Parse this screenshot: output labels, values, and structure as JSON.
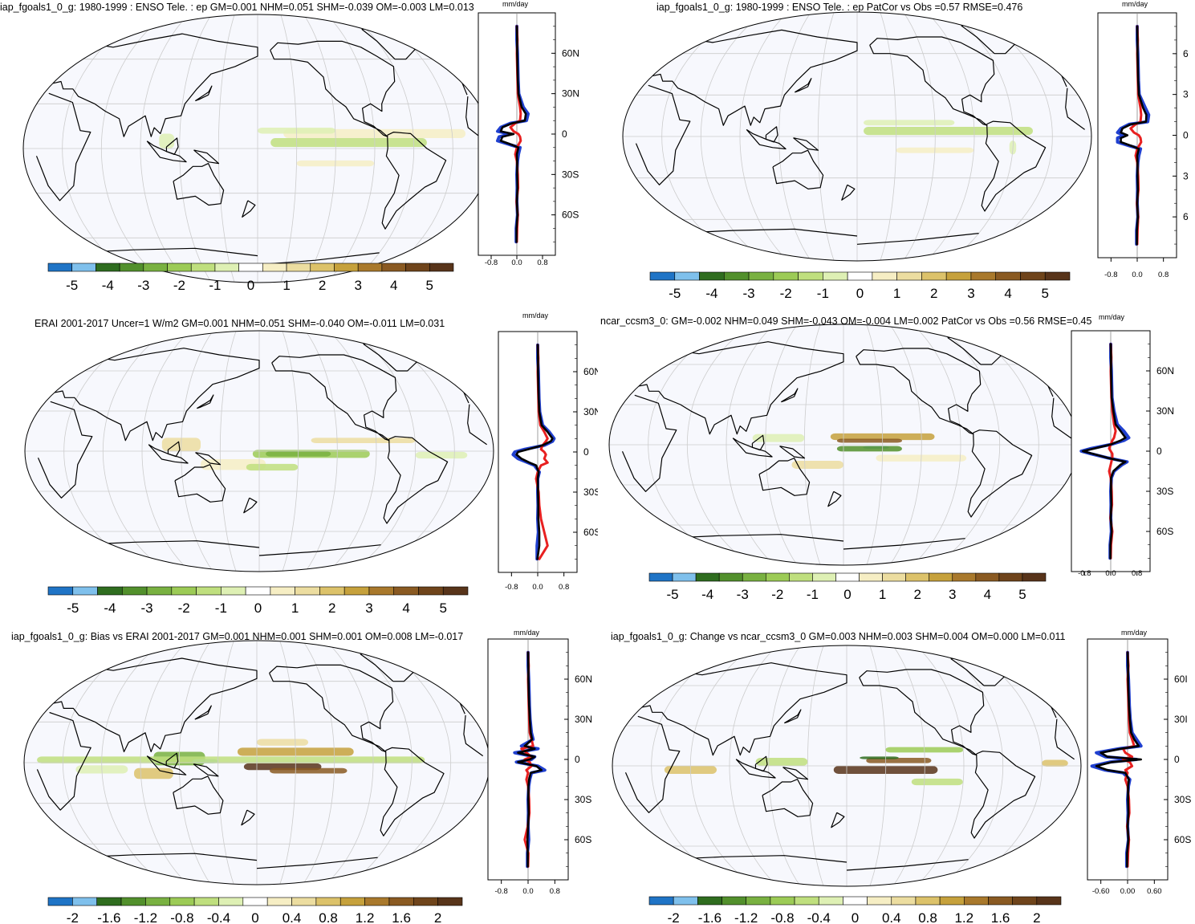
{
  "colors": {
    "map_background": "#f7f8fd",
    "obs_line": "#2040d0",
    "model_line": "#e82020",
    "mean_line": "#000000",
    "colorbar": [
      "#1f74c6",
      "#7fc0ec",
      "#2f6d1f",
      "#52902c",
      "#79b141",
      "#9ccb56",
      "#bfdf7e",
      "#def0b4",
      "#ffffff",
      "#f6eec4",
      "#ecdda0",
      "#dcc26a",
      "#c6a13c",
      "#a9792c",
      "#8a5a22",
      "#6f441b",
      "#58341a"
    ]
  },
  "chart_data": [
    {
      "id": "p1",
      "type": "heatmap",
      "title": "iap_fgoals1_0_g: 1980-1999 : ENSO Tele. : ep GM=0.001 NHM=0.051 SHM=-0.039 OM=-0.003 LM=0.013",
      "colorbar_labels": [
        "-5",
        "-4",
        "-3",
        "-2",
        "-1",
        "0",
        "1",
        "2",
        "3",
        "4",
        "5"
      ],
      "profile": {
        "unit": "mm/day",
        "x_ticks": [
          "-0.8",
          "0.0",
          "0.8"
        ],
        "y_ticks": [
          "60N",
          "30N",
          "0",
          "30S",
          "60S"
        ],
        "y": [
          80,
          70,
          60,
          50,
          40,
          30,
          20,
          15,
          10,
          8,
          5,
          2,
          0,
          -2,
          -5,
          -8,
          -10,
          -15,
          -20,
          -30,
          -40,
          -50,
          -60,
          -70,
          -80
        ],
        "series": [
          {
            "color_key": "obs_line",
            "values": [
              0,
              0,
              0.02,
              0.03,
              0.04,
              0.06,
              0.2,
              0.35,
              0.3,
              -0.2,
              -0.5,
              -0.6,
              -0.2,
              -0.55,
              -0.6,
              -0.2,
              0.1,
              0.05,
              0.02,
              0,
              0.01,
              0,
              0.02,
              -0.02,
              -0.02
            ]
          },
          {
            "color_key": "model_line",
            "values": [
              0,
              0.02,
              0,
              0.01,
              0.02,
              0.03,
              0.1,
              0.12,
              0.1,
              -0.05,
              -0.2,
              -0.1,
              0.05,
              0.1,
              0.12,
              0.05,
              0.0,
              -0.05,
              0,
              0.03,
              0.04,
              -0.01,
              0.03,
              0.01,
              0
            ]
          },
          {
            "color_key": "mean_line",
            "values": [
              0,
              0.01,
              0.01,
              0.02,
              0.03,
              0.05,
              0.15,
              0.28,
              0.25,
              -0.15,
              -0.45,
              -0.5,
              -0.1,
              -0.45,
              -0.5,
              -0.15,
              0.05,
              0.0,
              0.01,
              0.01,
              0.02,
              0,
              0.02,
              -0.01,
              -0.01
            ]
          }
        ],
        "xlim": [
          -1.2,
          1.2
        ],
        "ylim": [
          -90,
          90
        ]
      }
    },
    {
      "id": "p2",
      "type": "heatmap",
      "title": "iap_fgoals1_0_g: 1980-1999 : ENSO Tele. : ep PatCor vs Obs =0.57 RMSE=0.476",
      "colorbar_labels": [
        "-5",
        "-4",
        "-3",
        "-2",
        "-1",
        "0",
        "1",
        "2",
        "3",
        "4",
        "5"
      ],
      "profile": {
        "unit": "mm/day",
        "x_ticks": [
          "-0.8",
          "0.0",
          "0.8"
        ],
        "y_ticks": [
          "6",
          "3",
          "0",
          "3",
          "6"
        ],
        "y": [
          80,
          70,
          60,
          50,
          40,
          30,
          20,
          15,
          10,
          8,
          5,
          2,
          0,
          -2,
          -5,
          -8,
          -10,
          -15,
          -20,
          -30,
          -40,
          -50,
          -60,
          -70,
          -80
        ],
        "series": [
          {
            "color_key": "obs_line",
            "values": [
              0,
              0,
              0.02,
              0.03,
              0.04,
              0.06,
              0.25,
              0.35,
              0.32,
              -0.25,
              -0.5,
              -0.6,
              -0.4,
              -0.6,
              -0.6,
              -0.2,
              0.1,
              0.05,
              0.02,
              0,
              0.01,
              0,
              0.02,
              -0.02,
              -0.02
            ]
          },
          {
            "color_key": "model_line",
            "values": [
              0,
              0.02,
              0,
              0.01,
              0.02,
              0.03,
              0.1,
              0.12,
              0.1,
              -0.05,
              -0.2,
              -0.1,
              0.05,
              0.1,
              0.12,
              0.05,
              0.0,
              -0.05,
              0,
              0.03,
              0.04,
              -0.01,
              0.03,
              0.01,
              0
            ]
          },
          {
            "color_key": "mean_line",
            "values": [
              0,
              0.01,
              0.01,
              0.02,
              0.03,
              0.05,
              0.18,
              0.28,
              0.27,
              -0.2,
              -0.45,
              -0.5,
              -0.3,
              -0.5,
              -0.5,
              -0.15,
              0.05,
              0.0,
              0.01,
              0.01,
              0.02,
              0,
              0.02,
              -0.01,
              -0.01
            ]
          }
        ],
        "xlim": [
          -1.2,
          1.2
        ],
        "ylim": [
          -90,
          90
        ]
      }
    },
    {
      "id": "p3",
      "type": "heatmap",
      "title": "ERAI 2001-2017 Uncer=1 W/m2 GM=0.001 NHM=0.051 SHM=-0.040 OM=-0.011 LM=0.031",
      "colorbar_labels": [
        "-5",
        "-4",
        "-3",
        "-2",
        "-1",
        "0",
        "1",
        "2",
        "3",
        "4",
        "5"
      ],
      "profile": {
        "unit": "mm/day",
        "x_ticks": [
          "-0.8",
          "0.0",
          "0.8"
        ],
        "y_ticks": [
          "60N",
          "30N",
          "0",
          "30S",
          "60S"
        ],
        "y": [
          80,
          70,
          60,
          50,
          40,
          30,
          20,
          15,
          10,
          8,
          5,
          2,
          0,
          -2,
          -5,
          -8,
          -10,
          -15,
          -20,
          -30,
          -40,
          -50,
          -60,
          -70,
          -80
        ],
        "series": [
          {
            "color_key": "obs_line",
            "values": [
              0,
              0,
              0.02,
              0.03,
              0.04,
              0.06,
              0.15,
              0.35,
              0.5,
              0.45,
              0.2,
              -0.4,
              -0.7,
              -0.75,
              -0.6,
              -0.3,
              -0.1,
              0.05,
              0.0,
              0,
              0.01,
              0,
              0.02,
              -0.02,
              -0.02
            ]
          },
          {
            "color_key": "model_line",
            "values": [
              0,
              0.02,
              0,
              0.01,
              0.02,
              0.03,
              0.08,
              0.2,
              0.3,
              0.25,
              0.15,
              0.1,
              0.2,
              0.25,
              0.2,
              0.3,
              0.1,
              0.0,
              -0.05,
              0.03,
              0.05,
              0.1,
              0.2,
              0.3,
              0.05
            ]
          },
          {
            "color_key": "mean_line",
            "values": [
              0,
              0.01,
              0.01,
              0.02,
              0.03,
              0.05,
              0.12,
              0.3,
              0.45,
              0.4,
              0.15,
              -0.3,
              -0.6,
              -0.65,
              -0.5,
              -0.25,
              -0.05,
              0.03,
              0.0,
              0.01,
              0.02,
              0.02,
              0.05,
              0.05,
              -0.01
            ]
          }
        ],
        "xlim": [
          -1.2,
          1.2
        ],
        "ylim": [
          -90,
          90
        ]
      }
    },
    {
      "id": "p4",
      "type": "heatmap",
      "title": "ncar_ccsm3_0: GM=-0.002 NHM=0.049 SHM=-0.043 OM=-0.004 LM=0.002 PatCor vs Obs =0.56 RMSE=0.45",
      "colorbar_labels": [
        "-5",
        "-4",
        "-3",
        "-2",
        "-1",
        "0",
        "1",
        "2",
        "3",
        "4",
        "5"
      ],
      "profile": {
        "unit": "mm/day",
        "x_ticks": [
          "-0.8",
          "0.0",
          "0.8"
        ],
        "y_ticks": [
          "60N",
          "30N",
          "0",
          "30S",
          "60S"
        ],
        "y": [
          80,
          70,
          60,
          50,
          40,
          30,
          20,
          15,
          10,
          8,
          5,
          2,
          0,
          -2,
          -5,
          -8,
          -10,
          -15,
          -20,
          -30,
          -40,
          -50,
          -60,
          -70,
          -80
        ],
        "series": [
          {
            "color_key": "obs_line",
            "values": [
              0,
              0,
              0.02,
              0.03,
              0.04,
              0.1,
              0.2,
              0.4,
              0.55,
              0.4,
              0.0,
              -0.6,
              -0.9,
              -0.6,
              -0.1,
              0.5,
              0.35,
              0.1,
              0.02,
              0,
              0.01,
              0,
              0.02,
              -0.02,
              -0.02
            ]
          },
          {
            "color_key": "model_line",
            "values": [
              0,
              0.02,
              0,
              0.01,
              0.02,
              0.05,
              0.1,
              0.15,
              0.1,
              0.05,
              0.0,
              -0.05,
              0.0,
              0.05,
              0.05,
              0.02,
              0.0,
              -0.05,
              0,
              0.03,
              0.04,
              -0.01,
              0.05,
              0.01,
              0
            ]
          },
          {
            "color_key": "mean_line",
            "values": [
              0,
              0.01,
              0.01,
              0.02,
              0.03,
              0.08,
              0.15,
              0.3,
              0.45,
              0.3,
              0.0,
              -0.5,
              -0.85,
              -0.55,
              -0.1,
              0.45,
              0.3,
              0.08,
              0.01,
              0.01,
              0.02,
              0,
              0.03,
              -0.01,
              -0.01
            ]
          }
        ],
        "xlim": [
          -1.2,
          1.2
        ],
        "ylim": [
          -90,
          90
        ]
      }
    },
    {
      "id": "p5",
      "type": "heatmap",
      "title": "iap_fgoals1_0_g: Bias vs ERAI 2001-2017 GM=0.001 NHM=0.001 SHM=0.001 OM=0.008 LM=-0.017",
      "colorbar_labels": [
        "-2",
        "-1.6",
        "-1.2",
        "-0.8",
        "-0.4",
        "0",
        "0.4",
        "0.8",
        "1.2",
        "1.6",
        "2"
      ],
      "profile": {
        "unit": "mm/day",
        "x_ticks": [
          "-0.8",
          "0.0",
          "0.8"
        ],
        "y_ticks": [
          "60N",
          "30N",
          "0",
          "30S",
          "60S"
        ],
        "y": [
          80,
          70,
          60,
          50,
          40,
          30,
          20,
          15,
          10,
          8,
          5,
          2,
          0,
          -2,
          -5,
          -8,
          -10,
          -15,
          -20,
          -30,
          -40,
          -50,
          -60,
          -70,
          -80
        ],
        "series": [
          {
            "color_key": "obs_line",
            "values": [
              0,
              0,
              0.02,
              0.03,
              0.04,
              0.06,
              0.1,
              0.15,
              -0.2,
              0.3,
              -0.4,
              0.2,
              0.1,
              -0.35,
              0.3,
              0.5,
              0.1,
              0.05,
              0.02,
              0,
              0.01,
              0,
              0.02,
              -0.02,
              -0.02
            ]
          },
          {
            "color_key": "model_line",
            "values": [
              0,
              0.02,
              0,
              0.01,
              0.02,
              0.03,
              0.05,
              0.1,
              0.15,
              -0.2,
              -0.05,
              0.1,
              -0.1,
              0.05,
              0.1,
              -0.05,
              0.0,
              -0.05,
              0,
              0.03,
              0.04,
              -0.01,
              -0.1,
              0.01,
              0
            ]
          },
          {
            "color_key": "mean_line",
            "values": [
              0,
              0.01,
              0.01,
              0.02,
              0.03,
              0.05,
              0.08,
              0.12,
              -0.1,
              0.2,
              -0.3,
              0.2,
              0.05,
              -0.3,
              0.25,
              0.4,
              0.08,
              0.03,
              0.01,
              0.01,
              0.02,
              0,
              -0.02,
              -0.01,
              -0.01
            ]
          }
        ],
        "xlim": [
          -1.2,
          1.2
        ],
        "ylim": [
          -90,
          90
        ]
      }
    },
    {
      "id": "p6",
      "type": "heatmap",
      "title": "iap_fgoals1_0_g: Change vs ncar_ccsm3_0 GM=0.003 NHM=0.003 SHM=0.004 OM=0.000 LM=0.011",
      "colorbar_labels": [
        "-2",
        "-1.6",
        "-1.2",
        "-0.8",
        "-0.4",
        "0",
        "0.4",
        "0.8",
        "1.2",
        "1.6",
        "2"
      ],
      "profile": {
        "unit": "mm/day",
        "x_ticks": [
          "-0.60",
          "0.00",
          "0.60"
        ],
        "y_ticks": [
          "60I",
          "30I",
          "0",
          "30S",
          "60S"
        ],
        "y": [
          80,
          70,
          60,
          50,
          40,
          30,
          20,
          15,
          10,
          8,
          5,
          2,
          0,
          -2,
          -5,
          -8,
          -10,
          -15,
          -20,
          -30,
          -40,
          -50,
          -60,
          -70,
          -80
        ],
        "series": [
          {
            "color_key": "obs_line",
            "values": [
              0,
              0,
              0.02,
              0.03,
              0.04,
              0.06,
              0.1,
              0.2,
              0.3,
              -0.2,
              -0.7,
              -0.5,
              0.2,
              -0.4,
              -0.8,
              -0.5,
              -0.1,
              0.05,
              0.02,
              0,
              0.01,
              0,
              0.02,
              -0.02,
              -0.02
            ]
          },
          {
            "color_key": "model_line",
            "values": [
              0,
              0.02,
              0,
              0.01,
              0.02,
              0.03,
              0.05,
              0.1,
              0.15,
              -0.1,
              -0.05,
              0.1,
              -0.1,
              0.05,
              0.1,
              -0.05,
              0.0,
              -0.05,
              0,
              0.03,
              0.04,
              -0.01,
              0.03,
              0.01,
              0
            ]
          },
          {
            "color_key": "mean_line",
            "values": [
              0,
              0.01,
              0.01,
              0.02,
              0.03,
              0.05,
              0.08,
              0.15,
              0.25,
              -0.15,
              -0.6,
              -0.45,
              0.3,
              -0.35,
              -0.7,
              -0.45,
              -0.05,
              0.03,
              0.01,
              0.01,
              0.02,
              0,
              0.02,
              -0.01,
              -0.01
            ]
          }
        ],
        "xlim": [
          -0.9,
          0.9
        ],
        "ylim": [
          -90,
          90
        ]
      }
    }
  ]
}
